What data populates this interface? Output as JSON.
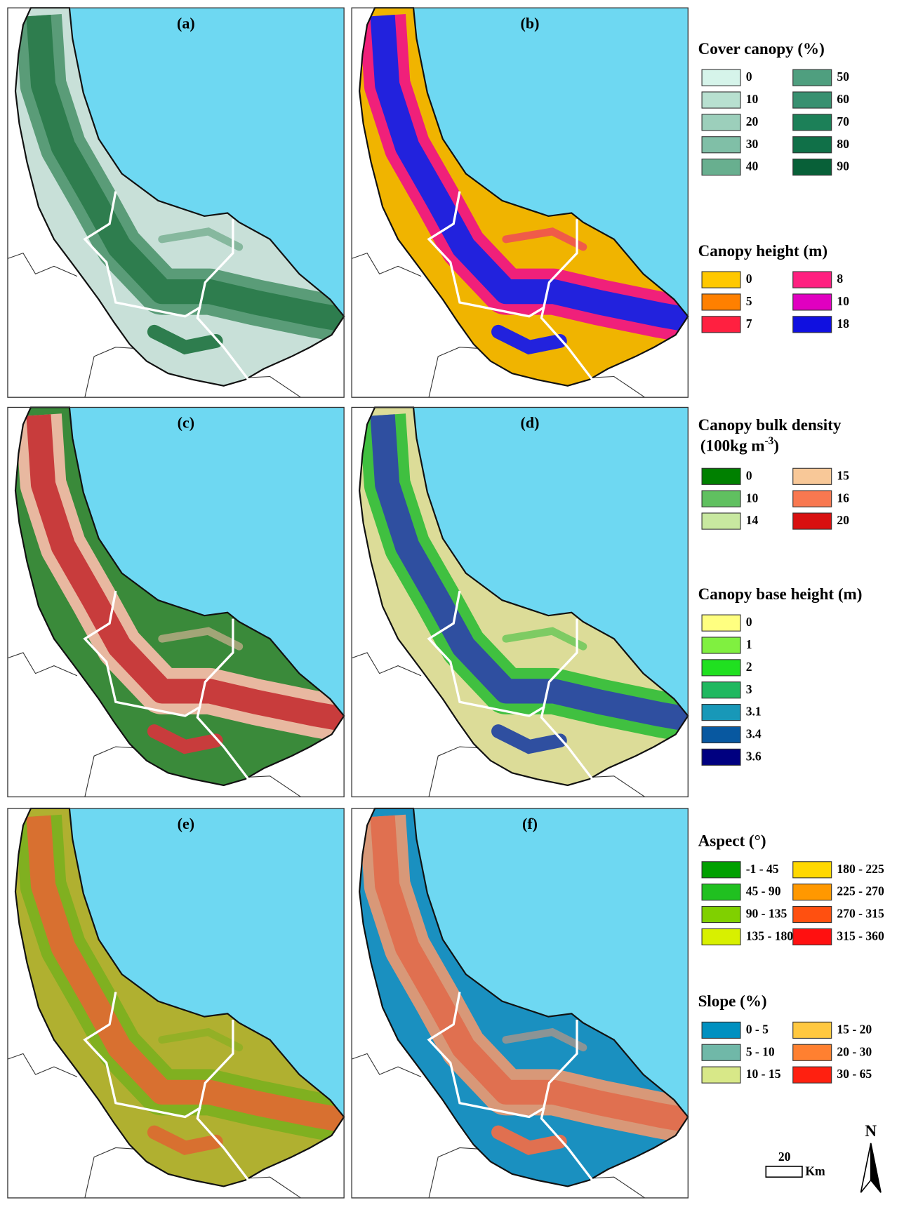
{
  "panels": [
    {
      "label": "(a)"
    },
    {
      "label": "(b)"
    },
    {
      "label": "(c)"
    },
    {
      "label": "(d)"
    },
    {
      "label": "(e)"
    },
    {
      "label": "(f)"
    }
  ],
  "legends": [
    {
      "title": "Cover canopy (%)",
      "items": [
        {
          "label": "0",
          "color": "#d6f4ea"
        },
        {
          "label": "10",
          "color": "#b8e0d0"
        },
        {
          "label": "20",
          "color": "#9ccfbb"
        },
        {
          "label": "30",
          "color": "#80bfa7"
        },
        {
          "label": "40",
          "color": "#68af8f"
        },
        {
          "label": "50",
          "color": "#4f9f7f"
        },
        {
          "label": "60",
          "color": "#389070"
        },
        {
          "label": "70",
          "color": "#1c8058"
        },
        {
          "label": "80",
          "color": "#107048"
        },
        {
          "label": "90",
          "color": "#086038"
        }
      ]
    },
    {
      "title": "Canopy height (m)",
      "items": [
        {
          "label": "0",
          "color": "#ffc800"
        },
        {
          "label": "5",
          "color": "#ff8000"
        },
        {
          "label": "7",
          "color": "#ff2040"
        },
        {
          "label": "8",
          "color": "#ff2080"
        },
        {
          "label": "10",
          "color": "#e000c0"
        },
        {
          "label": "18",
          "color": "#1010e0"
        }
      ]
    },
    {
      "title": "Canopy bulk density",
      "title_line2": "(100kg m",
      "title_sup": "-3",
      "title_end": ")",
      "items": [
        {
          "label": "0",
          "color": "#008000"
        },
        {
          "label": "10",
          "color": "#60c060"
        },
        {
          "label": "14",
          "color": "#c8e8a0"
        },
        {
          "label": "15",
          "color": "#f8c898"
        },
        {
          "label": "16",
          "color": "#f87850"
        },
        {
          "label": "20",
          "color": "#d81010"
        }
      ]
    },
    {
      "title": "Canopy base height (m)",
      "items": [
        {
          "label": "0",
          "color": "#ffff80"
        },
        {
          "label": "1",
          "color": "#80f040"
        },
        {
          "label": "2",
          "color": "#20e020"
        },
        {
          "label": "3",
          "color": "#20b860"
        },
        {
          "label": "3.1",
          "color": "#1898b8"
        },
        {
          "label": "3.4",
          "color": "#0858a0"
        },
        {
          "label": "3.6",
          "color": "#000080"
        }
      ]
    },
    {
      "title": "Aspect (°)",
      "items": [
        {
          "label": "-1 - 45",
          "color": "#00a000"
        },
        {
          "label": "45 - 90",
          "color": "#20c020"
        },
        {
          "label": "90 - 135",
          "color": "#80d000"
        },
        {
          "label": "135 - 180",
          "color": "#d8f000"
        },
        {
          "label": "180 - 225",
          "color": "#ffd800"
        },
        {
          "label": "225 - 270",
          "color": "#ff9800"
        },
        {
          "label": "270 - 315",
          "color": "#ff5010"
        },
        {
          "label": "315 - 360",
          "color": "#ff1010"
        }
      ]
    },
    {
      "title": "Slope (%)",
      "items": [
        {
          "label": "0 - 5",
          "color": "#0090c0"
        },
        {
          "label": "5 - 10",
          "color": "#70b8a8"
        },
        {
          "label": "10 - 15",
          "color": "#d8e888"
        },
        {
          "label": "15 - 20",
          "color": "#ffc840"
        },
        {
          "label": "20 - 30",
          "color": "#ff8030"
        },
        {
          "label": "30 - 65",
          "color": "#ff2010"
        }
      ]
    }
  ],
  "scale_bar": {
    "distance": "20",
    "unit": "Km"
  },
  "north": "N"
}
